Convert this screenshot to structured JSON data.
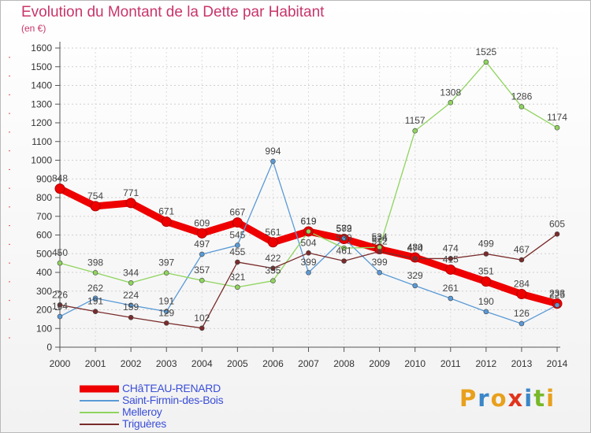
{
  "title": "Evolution du Montant de la Dette par Habitant",
  "unit": "(en €)",
  "brand": {
    "letters": [
      "P",
      "r",
      "o",
      "x",
      "i",
      "t",
      "i"
    ],
    "colors": [
      "#e8a01c",
      "#3a86c8",
      "#e8a01c",
      "#e0341c",
      "#3a86c8",
      "#78b82a",
      "#e8a01c"
    ]
  },
  "chart_data": {
    "type": "line",
    "title": "Evolution du Montant de la Dette par Habitant",
    "ylabel": "(en €)",
    "xlabel": "",
    "ylim": [
      0,
      1600
    ],
    "ytick_step": 100,
    "grid": true,
    "legend": "bottom-left",
    "x": [
      "2000",
      "2001",
      "2002",
      "2003",
      "2004",
      "2005",
      "2006",
      "2007",
      "2008",
      "2009",
      "2010",
      "2011",
      "2012",
      "2013",
      "2014"
    ],
    "series": [
      {
        "name": "CHâTEAU-RENARD",
        "color": "#ee0000",
        "width": 9,
        "values": [
          848,
          754,
          771,
          671,
          609,
          667,
          561,
          619,
          579,
          524,
          480,
          415,
          351,
          284,
          233
        ]
      },
      {
        "name": "Saint-Firmin-des-Bois",
        "color": "#5a9ad6",
        "width": 1.3,
        "values": [
          164,
          262,
          224,
          191,
          497,
          545,
          994,
          399,
          582,
          399,
          329,
          261,
          190,
          126,
          225
        ]
      },
      {
        "name": "Melleroy",
        "color": "#8fd45e",
        "width": 1.3,
        "values": [
          450,
          398,
          344,
          397,
          357,
          321,
          355,
          619,
          530,
          534,
          1157,
          1308,
          1525,
          1286,
          1174
        ]
      },
      {
        "name": "Triguères",
        "color": "#7a2b2b",
        "width": 1.3,
        "values": [
          226,
          191,
          159,
          129,
          102,
          455,
          422,
          504,
          461,
          512,
          474,
          474,
          499,
          467,
          605
        ]
      }
    ],
    "data_labels": {
      "CHâTEAU-RENARD": [
        "848",
        "754",
        "771",
        "671",
        "609",
        "667",
        "561",
        "619",
        "579",
        "524",
        "480",
        "415",
        "351",
        "284",
        "233"
      ],
      "Saint-Firmin-des-Bois": [
        "164",
        "262",
        "224",
        "191",
        "497",
        "545",
        "994",
        "399",
        "582",
        "399",
        "329",
        "261",
        "190",
        "126",
        "225"
      ],
      "Melleroy": [
        "450",
        "398",
        "344",
        "397",
        "357",
        "321",
        "355",
        "619",
        "530",
        "534",
        "1157",
        "1308",
        "1525",
        "1286",
        "1174"
      ],
      "Triguères": [
        "226",
        "191",
        "159",
        "129",
        "102",
        "455",
        "422",
        "504",
        "461",
        "512",
        "474",
        "474",
        "499",
        "467",
        "605"
      ]
    }
  }
}
